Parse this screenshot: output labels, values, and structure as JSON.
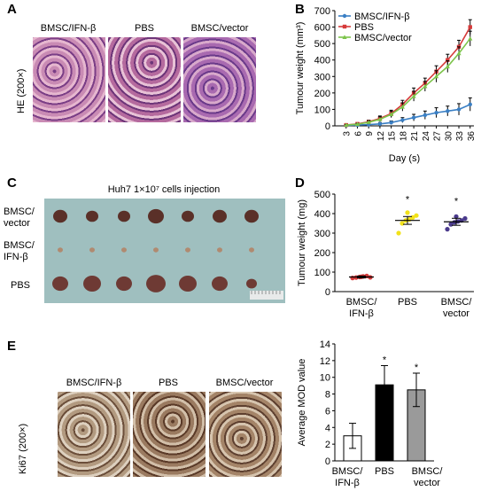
{
  "panel_letters": {
    "a": "A",
    "b": "B",
    "c": "C",
    "d": "D",
    "e": "E"
  },
  "panel_a": {
    "ylabel": "HE (200×)",
    "image_labels": [
      "BMSC/IFN-β",
      "PBS",
      "BMSC/vector"
    ]
  },
  "panel_c": {
    "title": "Huh7 1×10⁷ cells injection",
    "row_labels": [
      [
        "BMSC/",
        "vector"
      ],
      [
        "BMSC/",
        "IFN-β"
      ],
      [
        "PBS"
      ]
    ]
  },
  "panel_e_images": {
    "ylabel": "Ki67 (200×)",
    "image_labels": [
      "BMSC/IFN-β",
      "PBS",
      "BMSC/vector"
    ]
  },
  "colors": {
    "ifn": "#3a7fc4",
    "pbs": "#d63a3a",
    "vector": "#7cc44a",
    "d_ifn": "#d63a3a",
    "d_pbs": "#f2e21a",
    "d_vector": "#4a3a8c",
    "he_tissue": "#b56a9e",
    "ki67_tissue": "#b29a80",
    "c_background": "#9fbfbf"
  },
  "chart_data": [
    {
      "id": "B",
      "type": "line",
      "xlabel": "Day (s)",
      "ylabel": "Tumour weight (mm³)",
      "x": [
        3,
        6,
        9,
        12,
        15,
        18,
        21,
        24,
        27,
        30,
        33,
        36
      ],
      "ylim": [
        0,
        700
      ],
      "yticks": [
        0,
        100,
        200,
        300,
        400,
        500,
        600,
        700
      ],
      "legend_position": "top-left",
      "series": [
        {
          "name": "BMSC/IFN-β",
          "color": "#3a7fc4",
          "values": [
            3,
            5,
            8,
            12,
            20,
            35,
            50,
            65,
            80,
            90,
            100,
            130
          ],
          "errors": [
            2,
            3,
            5,
            8,
            10,
            15,
            20,
            25,
            30,
            30,
            35,
            40
          ]
        },
        {
          "name": "PBS",
          "color": "#d63a3a",
          "values": [
            5,
            12,
            25,
            45,
            75,
            130,
            200,
            260,
            330,
            400,
            480,
            600
          ],
          "errors": [
            3,
            5,
            10,
            15,
            20,
            25,
            30,
            30,
            35,
            35,
            40,
            45
          ]
        },
        {
          "name": "BMSC/vector",
          "color": "#7cc44a",
          "values": [
            5,
            10,
            22,
            40,
            70,
            115,
            180,
            240,
            300,
            360,
            440,
            530
          ],
          "errors": [
            3,
            5,
            10,
            15,
            20,
            25,
            30,
            30,
            35,
            35,
            40,
            45
          ]
        }
      ]
    },
    {
      "id": "D",
      "type": "scatter",
      "ylabel": "Tumour weight (mg)",
      "categories": [
        [
          "BMSC/",
          "IFN-β"
        ],
        [
          "PBS"
        ],
        [
          "BMSC/",
          "vector"
        ]
      ],
      "ylim": [
        0,
        500
      ],
      "yticks": [
        0,
        100,
        200,
        300,
        400,
        500
      ],
      "significance": [
        "",
        "*",
        "*"
      ],
      "groups": [
        {
          "color": "#d63a3a",
          "mean": 75,
          "sem": 5,
          "points": [
            70,
            72,
            75,
            78,
            80,
            73,
            76
          ]
        },
        {
          "color": "#f2e21a",
          "mean": 365,
          "sem": 20,
          "points": [
            300,
            350,
            365,
            370,
            380,
            390,
            405
          ]
        },
        {
          "color": "#4a3a8c",
          "mean": 358,
          "sem": 18,
          "points": [
            320,
            345,
            355,
            360,
            365,
            375,
            385
          ]
        }
      ]
    },
    {
      "id": "E",
      "type": "bar",
      "ylabel": "Average MOD value",
      "categories": [
        [
          "BMSC/",
          "IFN-β"
        ],
        [
          "PBS"
        ],
        [
          "BMSC/",
          "vector"
        ]
      ],
      "values": [
        3.0,
        9.1,
        8.5
      ],
      "errors": [
        1.5,
        2.3,
        2.0
      ],
      "ylim": [
        0,
        14
      ],
      "yticks": [
        0,
        2,
        4,
        6,
        8,
        10,
        12,
        14
      ],
      "significance": [
        "",
        "*",
        "*"
      ],
      "colors": [
        "#ffffff",
        "#000000",
        "#9a9a9a"
      ]
    }
  ]
}
